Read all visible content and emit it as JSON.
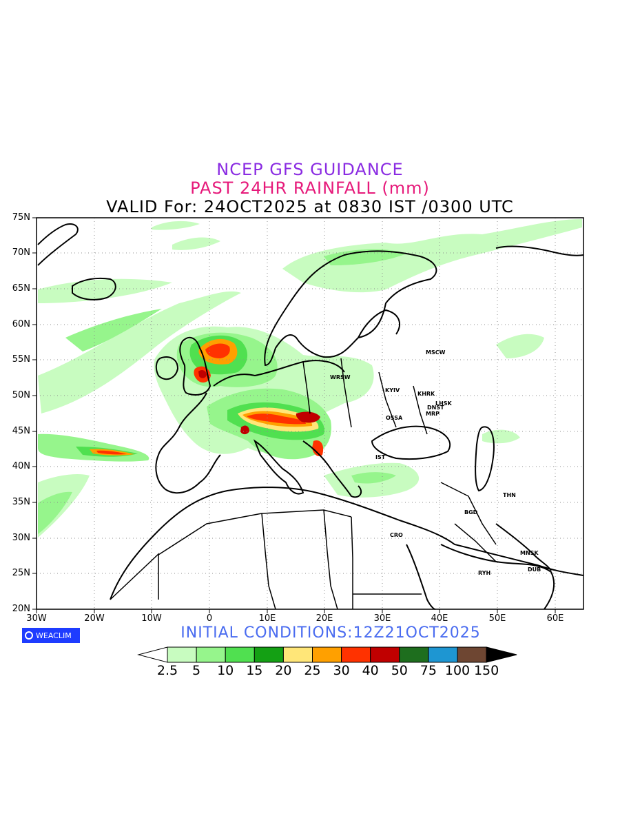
{
  "header": {
    "line1": "NCEP GFS GUIDANCE",
    "line2": "PAST 24HR RAINFALL (mm)",
    "line3": "VALID For: 24OCT2025 at 0830 IST /0300 UTC"
  },
  "map": {
    "lat_labels": [
      "75N",
      "70N",
      "65N",
      "60N",
      "55N",
      "50N",
      "45N",
      "40N",
      "35N",
      "30N",
      "25N",
      "20N"
    ],
    "lon_labels": [
      "30W",
      "20W",
      "10W",
      "0",
      "10E",
      "20E",
      "30E",
      "40E",
      "50E",
      "60E"
    ],
    "cities": [
      {
        "name": "MSCW"
      },
      {
        "name": "WRSW"
      },
      {
        "name": "KYIV"
      },
      {
        "name": "KHRK"
      },
      {
        "name": "LHSK"
      },
      {
        "name": "DNST"
      },
      {
        "name": "MRP"
      },
      {
        "name": "OSSA"
      },
      {
        "name": "IST"
      },
      {
        "name": "THN"
      },
      {
        "name": "BGD"
      },
      {
        "name": "CRO"
      },
      {
        "name": "MNSK"
      },
      {
        "name": "DUB"
      },
      {
        "name": "RYH"
      }
    ]
  },
  "footer": {
    "logo": "WEACLIM",
    "initial_conditions": "INITIAL  CONDITIONS:12Z21OCT2025"
  },
  "legend": {
    "labels": [
      "2.5",
      "5",
      "10",
      "15",
      "20",
      "25",
      "30",
      "40",
      "50",
      "75",
      "100",
      "150"
    ],
    "colors": [
      "#ffffff",
      "#c8fcc0",
      "#96f58c",
      "#50e050",
      "#14a014",
      "#ffe678",
      "#ffa000",
      "#ff3200",
      "#c00000",
      "#1e6e1e",
      "#1e96d2",
      "#6e4632",
      "#000000"
    ]
  }
}
